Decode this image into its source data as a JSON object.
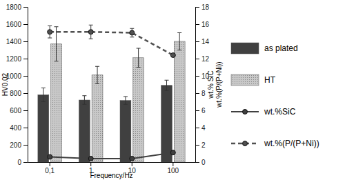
{
  "chart_data": {
    "type": "bar",
    "x_label": "Frequency/Hz",
    "y_label": "HV0.02",
    "y2_label": [
      "wt.% SiC",
      "wt.%(P/(P+Ni))"
    ],
    "categories": [
      "0,1",
      "1",
      "10",
      "100"
    ],
    "series": [
      {
        "name": "as plated",
        "type": "bar",
        "color": "#404040",
        "values": [
          780,
          720,
          715,
          890
        ],
        "errors": [
          80,
          50,
          45,
          60
        ]
      },
      {
        "name": "HT",
        "type": "bar",
        "color": "#c8c8c8",
        "values": [
          1370,
          1010,
          1210,
          1400
        ],
        "errors": [
          200,
          100,
          110,
          100
        ]
      },
      {
        "name": "wt.%SiC",
        "type": "line",
        "axis": "y2",
        "color": "#404040",
        "marker": "circle",
        "line_style": "solid",
        "values": [
          0.6,
          0.4,
          0.4,
          1.1
        ]
      },
      {
        "name": "wt.%(P/(P+Ni))",
        "type": "line",
        "axis": "y2",
        "color": "#505050",
        "marker": "circle",
        "line_style": "dashed",
        "values": [
          15.1,
          15.1,
          15.0,
          12.4
        ],
        "errors": [
          0.7,
          0.8,
          0.5,
          null
        ]
      }
    ],
    "ylim": [
      0,
      1800
    ],
    "yticks": [
      0,
      200,
      400,
      600,
      800,
      1000,
      1200,
      1400,
      1600,
      1800
    ],
    "y2lim": [
      0,
      18
    ],
    "y2ticks": [
      0,
      2,
      4,
      6,
      8,
      10,
      12,
      14,
      16,
      18
    ],
    "legend": "right"
  }
}
